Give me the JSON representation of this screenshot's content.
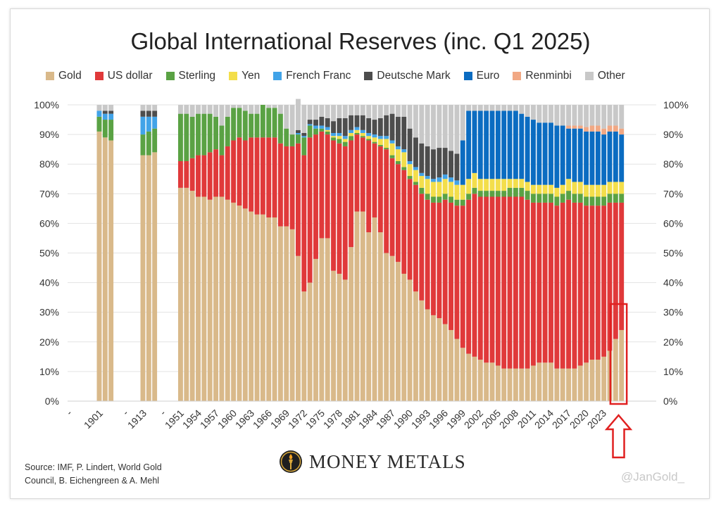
{
  "chart_data": {
    "type": "bar",
    "title": "Global International Reserves (inc. Q1 2025)",
    "stacked": true,
    "ylim": [
      0,
      100
    ],
    "yticks": [
      "0%",
      "10%",
      "20%",
      "30%",
      "40%",
      "50%",
      "60%",
      "70%",
      "80%",
      "90%",
      "100%"
    ],
    "grid": true,
    "legend_position": "top",
    "series_order": [
      "Gold",
      "US dollar",
      "Sterling",
      "Yen",
      "French Franc",
      "Deutsche Mark",
      "Euro",
      "Renminbi",
      "Other"
    ],
    "colors": {
      "Gold": "#d9b98a",
      "US dollar": "#e0393a",
      "Sterling": "#5aa244",
      "Yen": "#f3de4b",
      "French Franc": "#41a3e8",
      "Deutsche Mark": "#4d4d4d",
      "Euro": "#0b6cc1",
      "Renminbi": "#f1a884",
      "Other": "#c8c8c8"
    },
    "x_tick_labels": [
      "-",
      "1901",
      "-",
      "1913",
      "-",
      "1951",
      "1954",
      "1957",
      "1960",
      "1963",
      "1966",
      "1969",
      "1972",
      "1975",
      "1978",
      "1981",
      "1984",
      "1987",
      "1990",
      "1993",
      "1996",
      "1999",
      "2002",
      "2005",
      "2008",
      "2011",
      "2014",
      "2017",
      "2020",
      "2023"
    ],
    "bars": [
      {
        "period": "1899",
        "values": [
          91,
          0,
          5,
          0,
          2,
          0,
          0,
          0,
          2
        ]
      },
      {
        "period": "1900",
        "values": [
          89,
          0,
          6,
          0,
          2,
          1,
          0,
          0,
          2
        ]
      },
      {
        "period": "1901",
        "values": [
          88,
          0,
          7,
          0,
          2,
          1,
          0,
          0,
          2
        ]
      },
      {
        "period": "1911",
        "values": [
          83,
          0,
          7,
          0,
          6,
          2,
          0,
          0,
          2
        ]
      },
      {
        "period": "1912",
        "values": [
          83,
          0,
          8,
          0,
          5,
          2,
          0,
          0,
          2
        ]
      },
      {
        "period": "1913",
        "values": [
          84,
          0,
          8,
          0,
          4,
          2,
          0,
          0,
          2
        ]
      },
      {
        "period": "1951",
        "values": [
          72,
          9,
          16,
          0,
          0,
          0,
          0,
          0,
          3
        ]
      },
      {
        "period": "1952",
        "values": [
          72,
          9,
          16,
          0,
          0,
          0,
          0,
          0,
          3
        ]
      },
      {
        "period": "1953",
        "values": [
          71,
          11,
          14,
          0,
          0,
          0,
          0,
          0,
          4
        ]
      },
      {
        "period": "1954",
        "values": [
          69,
          14,
          14,
          0,
          0,
          0,
          0,
          0,
          3
        ]
      },
      {
        "period": "1955",
        "values": [
          69,
          14,
          14,
          0,
          0,
          0,
          0,
          0,
          3
        ]
      },
      {
        "period": "1956",
        "values": [
          68,
          16,
          13,
          0,
          0,
          0,
          0,
          0,
          3
        ]
      },
      {
        "period": "1957",
        "values": [
          69,
          16,
          11,
          0,
          0,
          0,
          0,
          0,
          4
        ]
      },
      {
        "period": "1958",
        "values": [
          69,
          14,
          10,
          0,
          0,
          0,
          0,
          0,
          7
        ]
      },
      {
        "period": "1959",
        "values": [
          68,
          18,
          10,
          0,
          0,
          0,
          0,
          0,
          4
        ]
      },
      {
        "period": "1960",
        "values": [
          67,
          21,
          11,
          0,
          0,
          0,
          0,
          0,
          1
        ]
      },
      {
        "period": "1961",
        "values": [
          66,
          23,
          10,
          0,
          0,
          0,
          0,
          0,
          1
        ]
      },
      {
        "period": "1962",
        "values": [
          65,
          23,
          10,
          0,
          0,
          0,
          0,
          0,
          2
        ]
      },
      {
        "period": "1963",
        "values": [
          64,
          25,
          8,
          0,
          0,
          0,
          0,
          0,
          3
        ]
      },
      {
        "period": "1964",
        "values": [
          63,
          26,
          8,
          0,
          0,
          0,
          0,
          0,
          3
        ]
      },
      {
        "period": "1965",
        "values": [
          63,
          26,
          11,
          0,
          0,
          0,
          0,
          0,
          0
        ]
      },
      {
        "period": "1966",
        "values": [
          62,
          27,
          10,
          0,
          0,
          0,
          0,
          0,
          1
        ]
      },
      {
        "period": "1967",
        "values": [
          62,
          27,
          10,
          0,
          0,
          0,
          0,
          0,
          1
        ]
      },
      {
        "period": "1968",
        "values": [
          59,
          28,
          10,
          0,
          0,
          0,
          0,
          0,
          3
        ]
      },
      {
        "period": "1969",
        "values": [
          59,
          27,
          6,
          0,
          0,
          0,
          0,
          0,
          8
        ]
      },
      {
        "period": "1970",
        "values": [
          58,
          28,
          4,
          0,
          0,
          0,
          0,
          0,
          10
        ]
      },
      {
        "period": "1971",
        "values": [
          49,
          38,
          3,
          0,
          0.5,
          1,
          0,
          0,
          10.5
        ]
      },
      {
        "period": "1972",
        "values": [
          37,
          46,
          6,
          0,
          0.5,
          1,
          0,
          0,
          9.5
        ]
      },
      {
        "period": "1973",
        "values": [
          40,
          49,
          4,
          0,
          0.5,
          1.5,
          0,
          0,
          5
        ]
      },
      {
        "period": "1974",
        "values": [
          48,
          42,
          2,
          0,
          1,
          2,
          0,
          0,
          5
        ]
      },
      {
        "period": "1975",
        "values": [
          55,
          36,
          1,
          0,
          1,
          3,
          0,
          0,
          4
        ]
      },
      {
        "period": "1976",
        "values": [
          55,
          35,
          1,
          0.5,
          1,
          3,
          0,
          0,
          4.5
        ]
      },
      {
        "period": "1977",
        "values": [
          44,
          44,
          1,
          0.5,
          1,
          4,
          0,
          0,
          5.5
        ]
      },
      {
        "period": "1978",
        "values": [
          43,
          44,
          1.5,
          1,
          1,
          5,
          0,
          0,
          4.5
        ]
      },
      {
        "period": "1979",
        "values": [
          41,
          45,
          1.5,
          1,
          1,
          6,
          0,
          0,
          4.5
        ]
      },
      {
        "period": "1980",
        "values": [
          52,
          36,
          1.5,
          1,
          1,
          5,
          0,
          0,
          3.5
        ]
      },
      {
        "period": "1981",
        "values": [
          64,
          26,
          0.5,
          1,
          1,
          4,
          0,
          0,
          3.5
        ]
      },
      {
        "period": "1982",
        "values": [
          64,
          25,
          0.5,
          1,
          1,
          5,
          0,
          0,
          3.5
        ]
      },
      {
        "period": "1983",
        "values": [
          57,
          31,
          0.5,
          1,
          1,
          5,
          0,
          0,
          4.5
        ]
      },
      {
        "period": "1984",
        "values": [
          62,
          25,
          0.5,
          1.5,
          1,
          5,
          0,
          0,
          5
        ]
      },
      {
        "period": "1985",
        "values": [
          57,
          29,
          0.5,
          2,
          1,
          6,
          0,
          0,
          4.5
        ]
      },
      {
        "period": "1986",
        "values": [
          50,
          35,
          0.5,
          3,
          1,
          7,
          0,
          0,
          3.5
        ]
      },
      {
        "period": "1987",
        "values": [
          49,
          33,
          1,
          4,
          1,
          9,
          0,
          0,
          3
        ]
      },
      {
        "period": "1988",
        "values": [
          47,
          33,
          1,
          4,
          1,
          10,
          0,
          0,
          4
        ]
      },
      {
        "period": "1989",
        "values": [
          43,
          35,
          1,
          5,
          1,
          11,
          0,
          0,
          4
        ]
      },
      {
        "period": "1990",
        "values": [
          41,
          34,
          1,
          4,
          1,
          11,
          0,
          0,
          8
        ]
      },
      {
        "period": "1991",
        "values": [
          37,
          36,
          1,
          4,
          1,
          10,
          0,
          0,
          11
        ]
      },
      {
        "period": "1992",
        "values": [
          34,
          36,
          2,
          4,
          1,
          10,
          0,
          0,
          13
        ]
      },
      {
        "period": "1993",
        "values": [
          31,
          37,
          2,
          5,
          1,
          10,
          0,
          0,
          14
        ]
      },
      {
        "period": "1994",
        "values": [
          29,
          38,
          2,
          5,
          1,
          10,
          0,
          0,
          15
        ]
      },
      {
        "period": "1995",
        "values": [
          28,
          39,
          2,
          5,
          1.5,
          10,
          0,
          0,
          14.5
        ]
      },
      {
        "period": "1996",
        "values": [
          26,
          42,
          2,
          5,
          1.5,
          9,
          0,
          0,
          14.5
        ]
      },
      {
        "period": "1997",
        "values": [
          24,
          43,
          2,
          5,
          1.5,
          9,
          0,
          0,
          15.5
        ]
      },
      {
        "period": "1998",
        "values": [
          21,
          45,
          2,
          5,
          1.5,
          9,
          0,
          0,
          16.5
        ]
      },
      {
        "period": "1999",
        "values": [
          18,
          48,
          2,
          5,
          0,
          0,
          15,
          0,
          12
        ]
      },
      {
        "period": "2000",
        "values": [
          16,
          52,
          2,
          5,
          0,
          0,
          23,
          0,
          2
        ]
      },
      {
        "period": "2001",
        "values": [
          15,
          55,
          2,
          5,
          0,
          0,
          21,
          0,
          2
        ]
      },
      {
        "period": "2002",
        "values": [
          14,
          55,
          2,
          4,
          0,
          0,
          23,
          0,
          2
        ]
      },
      {
        "period": "2003",
        "values": [
          13,
          56,
          2,
          4,
          0,
          0,
          23,
          0,
          2
        ]
      },
      {
        "period": "2004",
        "values": [
          13,
          56,
          2,
          4,
          0,
          0,
          23,
          0,
          2
        ]
      },
      {
        "period": "2005",
        "values": [
          12,
          57,
          2,
          4,
          0,
          0,
          23,
          0,
          2
        ]
      },
      {
        "period": "2006",
        "values": [
          11,
          58,
          2,
          4,
          0,
          0,
          23,
          0,
          2
        ]
      },
      {
        "period": "2007",
        "values": [
          11,
          58,
          3,
          3,
          0,
          0,
          23,
          0,
          2
        ]
      },
      {
        "period": "2008",
        "values": [
          11,
          58,
          3,
          3,
          0,
          0,
          23,
          0,
          2
        ]
      },
      {
        "period": "2009",
        "values": [
          11,
          58,
          3,
          3,
          0,
          0,
          22,
          0,
          3
        ]
      },
      {
        "period": "2010",
        "values": [
          11,
          57,
          3,
          3,
          0,
          0,
          22,
          0,
          4
        ]
      },
      {
        "period": "2011",
        "values": [
          12,
          55,
          3,
          3,
          0,
          0,
          22,
          0,
          5
        ]
      },
      {
        "period": "2012",
        "values": [
          13,
          54,
          3,
          3,
          0,
          0,
          21,
          0,
          6
        ]
      },
      {
        "period": "2013",
        "values": [
          13,
          54,
          3,
          3,
          0,
          0,
          21,
          0,
          6
        ]
      },
      {
        "period": "2014",
        "values": [
          13,
          54,
          3,
          3,
          0,
          0,
          21,
          0,
          6
        ]
      },
      {
        "period": "2015",
        "values": [
          11,
          55,
          3,
          3,
          0,
          0,
          21,
          0,
          7
        ]
      },
      {
        "period": "2016",
        "values": [
          11,
          56,
          3,
          3,
          0,
          0,
          20,
          0,
          7
        ]
      },
      {
        "period": "2017",
        "values": [
          11,
          57,
          3,
          4,
          0,
          0,
          17,
          1,
          7
        ]
      },
      {
        "period": "2018",
        "values": [
          11,
          56,
          3,
          4,
          0,
          0,
          18,
          1,
          7
        ]
      },
      {
        "period": "2019",
        "values": [
          12,
          55,
          3,
          4,
          0,
          0,
          18,
          1,
          7
        ]
      },
      {
        "period": "2020",
        "values": [
          13,
          53,
          3,
          4,
          0,
          0,
          18,
          1.5,
          7.5
        ]
      },
      {
        "period": "2021",
        "values": [
          14,
          52,
          3,
          4,
          0,
          0,
          18,
          2,
          7
        ]
      },
      {
        "period": "2022",
        "values": [
          14,
          52,
          3,
          4,
          0,
          0,
          18,
          2,
          7
        ]
      },
      {
        "period": "2023",
        "values": [
          15,
          51,
          3,
          4,
          0,
          0,
          17,
          2,
          8
        ]
      },
      {
        "period": "2024",
        "values": [
          17,
          50,
          3,
          4,
          0,
          0,
          17,
          2,
          7
        ]
      },
      {
        "period": "2024b",
        "values": [
          21,
          46,
          3,
          4,
          0,
          0,
          17,
          2,
          7
        ]
      },
      {
        "period": "2025",
        "values": [
          24,
          43,
          3,
          4,
          0,
          0,
          16,
          2,
          8
        ]
      }
    ],
    "highlight_color": "#e02020"
  },
  "legend": [
    {
      "label": "Gold",
      "color": "#d9b98a"
    },
    {
      "label": "US dollar",
      "color": "#e0393a"
    },
    {
      "label": "Sterling",
      "color": "#5aa244"
    },
    {
      "label": "Yen",
      "color": "#f3de4b"
    },
    {
      "label": "French Franc",
      "color": "#41a3e8"
    },
    {
      "label": "Deutsche Mark",
      "color": "#4d4d4d"
    },
    {
      "label": "Euro",
      "color": "#0b6cc1"
    },
    {
      "label": "Renminbi",
      "color": "#f1a884"
    },
    {
      "label": "Other",
      "color": "#c8c8c8"
    }
  ],
  "source": {
    "line1": "Source: IMF, P. Lindert, World Gold",
    "line2": "Council, B. Eichengreen & A. Mehl"
  },
  "brand": {
    "name": "MONEY METALS",
    "mark": "®",
    "logo_icon": "torch-coin-icon"
  },
  "watermark": "@JanGold_"
}
